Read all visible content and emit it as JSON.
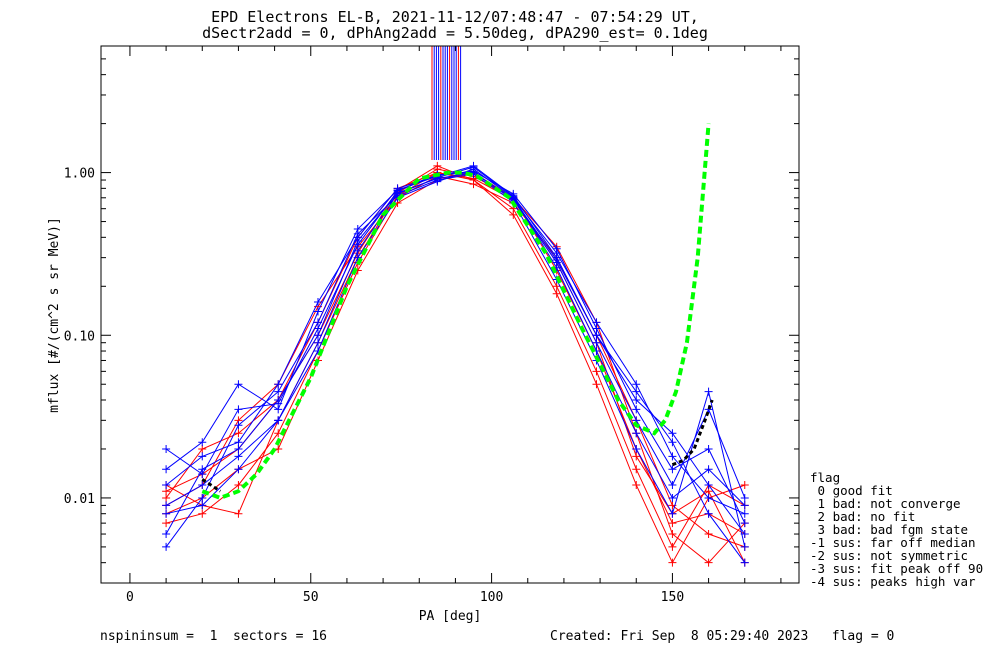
{
  "chart_data": {
    "type": "line",
    "title": "EPD Electrons EL-B, 2021-11-12/07:48:47 - 07:54:29 UT,",
    "subtitle": "dSectr2add = 0, dPhAng2add = 5.50deg, dPA290_est=   0.1deg",
    "xlabel": "PA [deg]",
    "ylabel": "mflux [#/(cm^2 s sr MeV)]",
    "xlim": [
      -8,
      185
    ],
    "ylim": [
      0.003,
      6.0
    ],
    "yscale": "log",
    "xticks": [
      {
        "v": 0,
        "label": "0"
      },
      {
        "v": 50,
        "label": "50"
      },
      {
        "v": 100,
        "label": "100"
      },
      {
        "v": 150,
        "label": "150"
      }
    ],
    "yticks": [
      {
        "v": 0.01,
        "label": "0.01"
      },
      {
        "v": 0.1,
        "label": "0.10"
      },
      {
        "v": 1.0,
        "label": "1.00"
      }
    ],
    "colors": {
      "red": "#ff0000",
      "blue": "#0000ff",
      "green": "#00ff00",
      "black": "#000000"
    },
    "x": [
      10,
      20,
      30,
      41,
      52,
      63,
      74,
      85,
      95,
      106,
      118,
      129,
      140,
      150,
      160,
      170
    ],
    "series": [
      {
        "color": "red",
        "values": [
          0.012,
          0.009,
          0.008,
          0.03,
          0.09,
          0.3,
          0.75,
          1.05,
          0.95,
          0.7,
          0.25,
          0.08,
          0.02,
          0.007,
          0.008,
          0.006
        ]
      },
      {
        "color": "red",
        "values": [
          0.011,
          0.014,
          0.02,
          0.04,
          0.12,
          0.4,
          0.8,
          1.0,
          0.9,
          0.6,
          0.2,
          0.06,
          0.015,
          0.005,
          0.012,
          0.009
        ]
      },
      {
        "color": "red",
        "values": [
          0.009,
          0.012,
          0.03,
          0.05,
          0.15,
          0.35,
          0.7,
          0.95,
          0.85,
          0.65,
          0.3,
          0.1,
          0.03,
          0.009,
          0.006,
          0.005
        ]
      },
      {
        "color": "red",
        "values": [
          0.008,
          0.01,
          0.015,
          0.02,
          0.07,
          0.25,
          0.65,
          0.9,
          1.0,
          0.7,
          0.35,
          0.12,
          0.025,
          0.006,
          0.004,
          0.007
        ]
      },
      {
        "color": "red",
        "values": [
          0.01,
          0.02,
          0.025,
          0.04,
          0.1,
          0.32,
          0.78,
          1.1,
          0.9,
          0.55,
          0.18,
          0.05,
          0.012,
          0.004,
          0.01,
          0.012
        ]
      },
      {
        "color": "red",
        "values": [
          0.007,
          0.008,
          0.012,
          0.025,
          0.08,
          0.28,
          0.72,
          1.0,
          0.92,
          0.68,
          0.28,
          0.09,
          0.018,
          0.008,
          0.011,
          0.004
        ]
      },
      {
        "color": "blue",
        "values": [
          0.015,
          0.022,
          0.05,
          0.035,
          0.14,
          0.45,
          0.78,
          0.95,
          1.1,
          0.72,
          0.3,
          0.1,
          0.04,
          0.025,
          0.012,
          0.006
        ]
      },
      {
        "color": "blue",
        "values": [
          0.006,
          0.015,
          0.02,
          0.04,
          0.1,
          0.38,
          0.75,
          0.92,
          1.0,
          0.68,
          0.28,
          0.09,
          0.03,
          0.012,
          0.035,
          0.01
        ]
      },
      {
        "color": "blue",
        "values": [
          0.009,
          0.012,
          0.018,
          0.03,
          0.08,
          0.3,
          0.7,
          0.88,
          1.05,
          0.7,
          0.32,
          0.12,
          0.05,
          0.018,
          0.01,
          0.008
        ]
      },
      {
        "color": "blue",
        "values": [
          0.005,
          0.01,
          0.028,
          0.045,
          0.12,
          0.42,
          0.72,
          0.9,
          0.98,
          0.66,
          0.22,
          0.07,
          0.02,
          0.008,
          0.045,
          0.005
        ]
      },
      {
        "color": "blue",
        "values": [
          0.012,
          0.018,
          0.022,
          0.05,
          0.16,
          0.4,
          0.8,
          0.96,
          1.02,
          0.74,
          0.34,
          0.11,
          0.035,
          0.015,
          0.02,
          0.007
        ]
      },
      {
        "color": "blue",
        "values": [
          0.008,
          0.009,
          0.015,
          0.03,
          0.09,
          0.33,
          0.74,
          0.93,
          1.08,
          0.71,
          0.26,
          0.08,
          0.025,
          0.01,
          0.015,
          0.009
        ]
      },
      {
        "color": "blue",
        "values": [
          0.02,
          0.014,
          0.035,
          0.038,
          0.11,
          0.36,
          0.77,
          0.97,
          1.0,
          0.69,
          0.29,
          0.1,
          0.045,
          0.022,
          0.008,
          0.004
        ]
      }
    ],
    "fit": {
      "x": [
        20,
        25,
        30,
        35,
        40,
        50,
        60,
        70,
        80,
        88,
        92,
        96,
        105,
        115,
        125,
        135,
        140,
        145,
        148,
        151,
        154,
        157,
        160
      ],
      "values": [
        0.011,
        0.01,
        0.011,
        0.014,
        0.02,
        0.055,
        0.2,
        0.55,
        0.92,
        1.0,
        1.0,
        0.95,
        0.7,
        0.32,
        0.11,
        0.04,
        0.028,
        0.025,
        0.03,
        0.045,
        0.09,
        0.3,
        2.0
      ]
    },
    "median": {
      "x": [
        20,
        25,
        150,
        153,
        156,
        159,
        161
      ],
      "values": [
        0.013,
        0.011,
        0.016,
        0.017,
        0.02,
        0.03,
        0.04
      ]
    },
    "legend": {
      "title": "flag",
      "entries": [
        " 0 good fit",
        " 1 bad: not converge",
        " 2 bad: no fit",
        " 3 bad: bad fgm state",
        "-1 sus: far off median",
        "-2 sus: not symmetric",
        "-3 sus: fit peak off 90",
        "-4 sus: peaks high var"
      ]
    },
    "footer": {
      "left": "nspininsum =  1  sectors = 16",
      "right": "Created: Fri Sep  8 05:29:40 2023   flag = 0"
    }
  }
}
